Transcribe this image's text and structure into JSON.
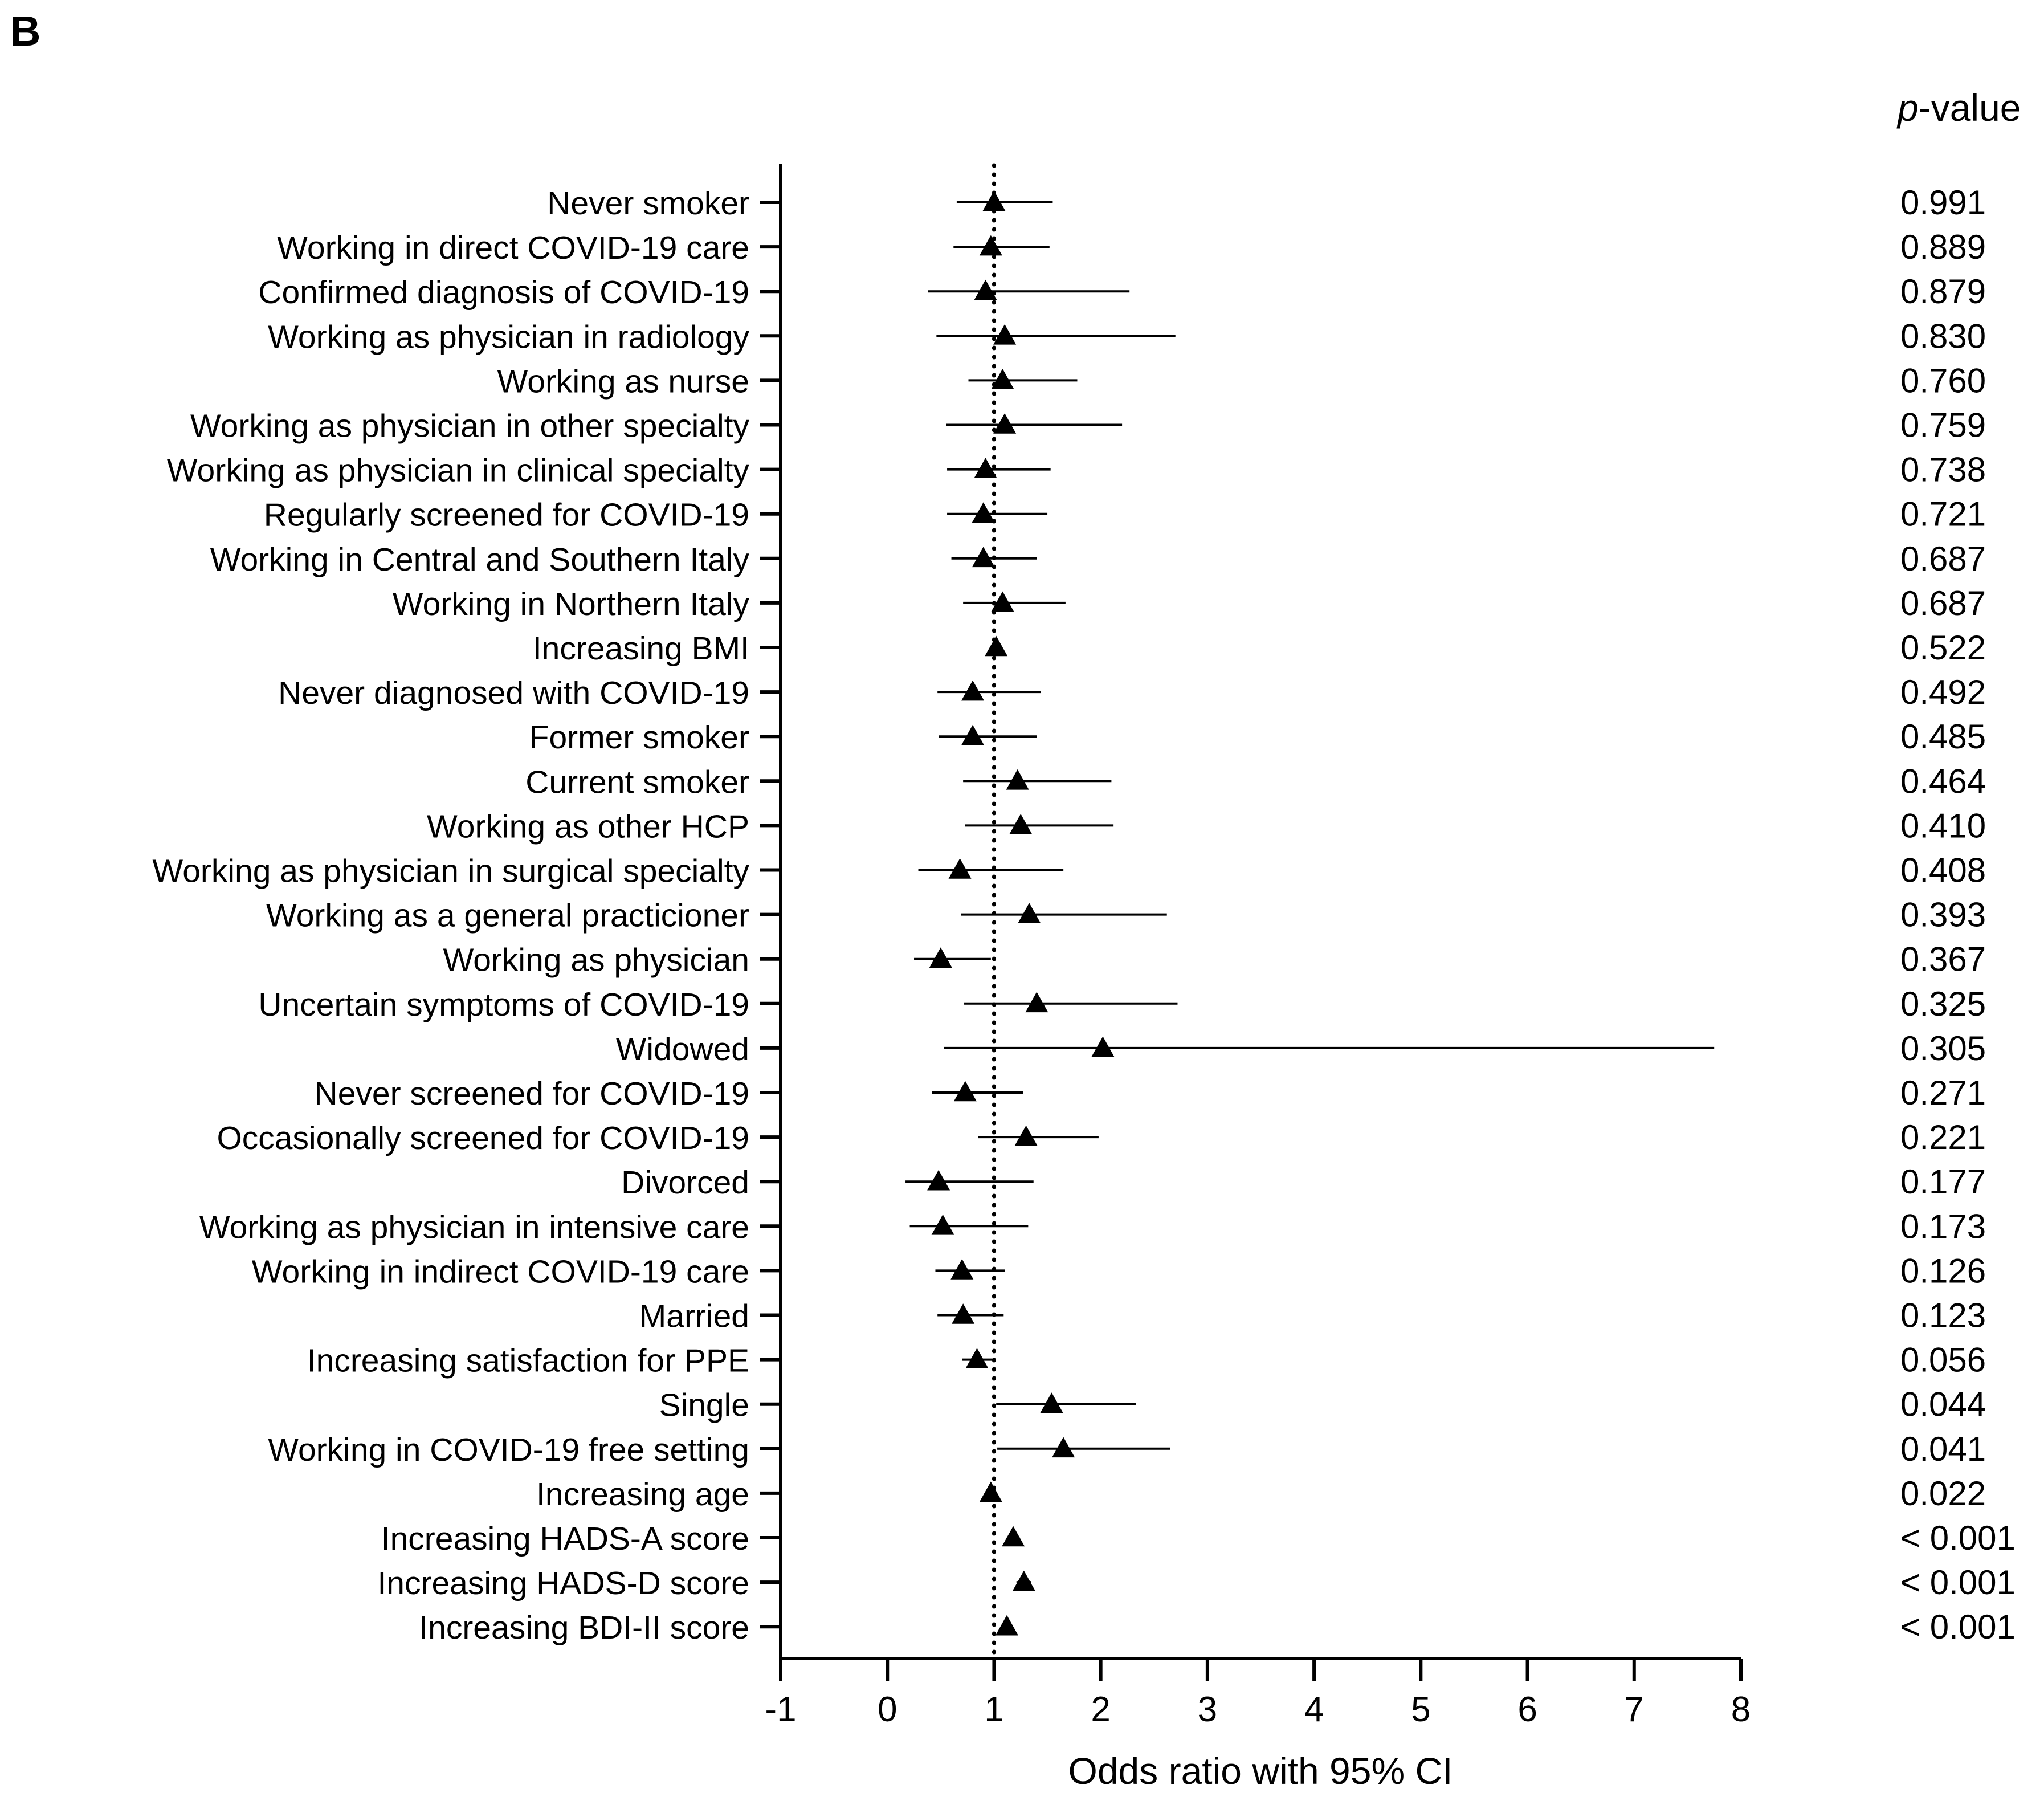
{
  "panel_label": "B",
  "pvalue_header": {
    "italic": "p",
    "rest": "-value"
  },
  "chart_data": {
    "type": "forest",
    "title": "",
    "xlabel": "Odds ratio with 95% CI",
    "xlim": [
      -1,
      8
    ],
    "xticks": [
      -1,
      0,
      1,
      2,
      3,
      4,
      5,
      6,
      7,
      8
    ],
    "reference_line": 1,
    "marker": "triangle",
    "rows": [
      {
        "label": "Never smoker",
        "or": 1.0,
        "lo": 0.65,
        "hi": 1.55,
        "p": "0.991"
      },
      {
        "label": "Working in direct COVID-19 care",
        "or": 0.97,
        "lo": 0.62,
        "hi": 1.52,
        "p": "0.889"
      },
      {
        "label": "Confirmed diagnosis of COVID-19",
        "or": 0.92,
        "lo": 0.38,
        "hi": 2.27,
        "p": "0.879"
      },
      {
        "label": "Working as physician in radiology",
        "or": 1.1,
        "lo": 0.46,
        "hi": 2.7,
        "p": "0.830"
      },
      {
        "label": "Working as nurse",
        "or": 1.08,
        "lo": 0.76,
        "hi": 1.78,
        "p": "0.760"
      },
      {
        "label": "Working as physician in other specialty",
        "or": 1.1,
        "lo": 0.55,
        "hi": 2.2,
        "p": "0.759"
      },
      {
        "label": "Working as physician in clinical specialty",
        "or": 0.92,
        "lo": 0.56,
        "hi": 1.53,
        "p": "0.738"
      },
      {
        "label": "Regularly screened for COVID-19",
        "or": 0.9,
        "lo": 0.56,
        "hi": 1.5,
        "p": "0.721"
      },
      {
        "label": "Working in Central and Southern Italy",
        "or": 0.9,
        "lo": 0.6,
        "hi": 1.4,
        "p": "0.687"
      },
      {
        "label": "Working in Northern Italy",
        "or": 1.08,
        "lo": 0.71,
        "hi": 1.67,
        "p": "0.687"
      },
      {
        "label": "Increasing BMI",
        "or": 1.02,
        "lo": 0.97,
        "hi": 1.07,
        "p": "0.522"
      },
      {
        "label": "Never diagnosed with COVID-19",
        "or": 0.8,
        "lo": 0.47,
        "hi": 1.44,
        "p": "0.492"
      },
      {
        "label": "Former smoker",
        "or": 0.8,
        "lo": 0.48,
        "hi": 1.4,
        "p": "0.485"
      },
      {
        "label": "Current smoker",
        "or": 1.22,
        "lo": 0.71,
        "hi": 2.1,
        "p": "0.464"
      },
      {
        "label": "Working as other HCP",
        "or": 1.25,
        "lo": 0.73,
        "hi": 2.12,
        "p": "0.410"
      },
      {
        "label": "Working as physician in surgical specialty",
        "or": 0.68,
        "lo": 0.29,
        "hi": 1.65,
        "p": "0.408"
      },
      {
        "label": "Working as a general practicioner",
        "or": 1.33,
        "lo": 0.69,
        "hi": 2.62,
        "p": "0.393"
      },
      {
        "label": "Working as physician",
        "or": 0.5,
        "lo": 0.25,
        "hi": 0.97,
        "p": "0.367"
      },
      {
        "label": "Uncertain symptoms of COVID-19",
        "or": 1.4,
        "lo": 0.72,
        "hi": 2.72,
        "p": "0.325"
      },
      {
        "label": "Widowed",
        "or": 2.02,
        "lo": 0.53,
        "hi": 7.75,
        "p": "0.305"
      },
      {
        "label": "Never screened for COVID-19",
        "or": 0.73,
        "lo": 0.42,
        "hi": 1.27,
        "p": "0.271"
      },
      {
        "label": "Occasionally screened for COVID-19",
        "or": 1.3,
        "lo": 0.85,
        "hi": 1.98,
        "p": "0.221"
      },
      {
        "label": "Divorced",
        "or": 0.48,
        "lo": 0.17,
        "hi": 1.37,
        "p": "0.177"
      },
      {
        "label": "Working as physician in intensive care",
        "or": 0.52,
        "lo": 0.21,
        "hi": 1.32,
        "p": "0.173"
      },
      {
        "label": "Working in indirect COVID-19 care",
        "or": 0.7,
        "lo": 0.45,
        "hi": 1.1,
        "p": "0.126"
      },
      {
        "label": "Married",
        "or": 0.71,
        "lo": 0.47,
        "hi": 1.09,
        "p": "0.123"
      },
      {
        "label": "Increasing satisfaction for PPE",
        "or": 0.84,
        "lo": 0.7,
        "hi": 1.0,
        "p": "0.056"
      },
      {
        "label": "Single",
        "or": 1.54,
        "lo": 1.02,
        "hi": 2.33,
        "p": "0.044"
      },
      {
        "label": "Working in COVID-19 free setting",
        "or": 1.65,
        "lo": 1.03,
        "hi": 2.65,
        "p": "0.041"
      },
      {
        "label": "Increasing age",
        "or": 0.97,
        "lo": 0.95,
        "hi": 0.99,
        "p": "0.022"
      },
      {
        "label": "Increasing HADS-A score",
        "or": 1.18,
        "lo": 1.12,
        "hi": 1.24,
        "p": "< 0.001"
      },
      {
        "label": "Increasing HADS-D score",
        "or": 1.28,
        "lo": 1.21,
        "hi": 1.35,
        "p": "< 0.001"
      },
      {
        "label": "Increasing BDI-II score",
        "or": 1.12,
        "lo": 1.08,
        "hi": 1.16,
        "p": "< 0.001"
      }
    ]
  }
}
